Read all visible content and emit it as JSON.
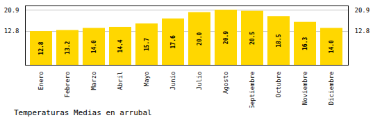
{
  "chart_data": {
    "type": "bar",
    "title": "Temperaturas Medias en arrubal",
    "categories": [
      "Enero",
      "Febrero",
      "Marzo",
      "Abril",
      "Mayo",
      "Junio",
      "Julio",
      "Agosto",
      "Septiembre",
      "Octubre",
      "Noviembre",
      "Diciembre"
    ],
    "values": [
      12.8,
      13.2,
      14.0,
      14.4,
      15.7,
      17.6,
      20.0,
      20.9,
      20.5,
      18.5,
      16.3,
      14.0
    ],
    "value_labels": [
      "12.8",
      "13.2",
      "14.0",
      "14.4",
      "15.7",
      "17.6",
      "20.0",
      "20.9",
      "20.5",
      "18.5",
      "16.3",
      "14.0"
    ],
    "color": "#FFD700",
    "ylim": [
      0,
      22.5
    ],
    "yticks": [
      12.8,
      20.9
    ],
    "grid": true,
    "data_labels": true
  }
}
